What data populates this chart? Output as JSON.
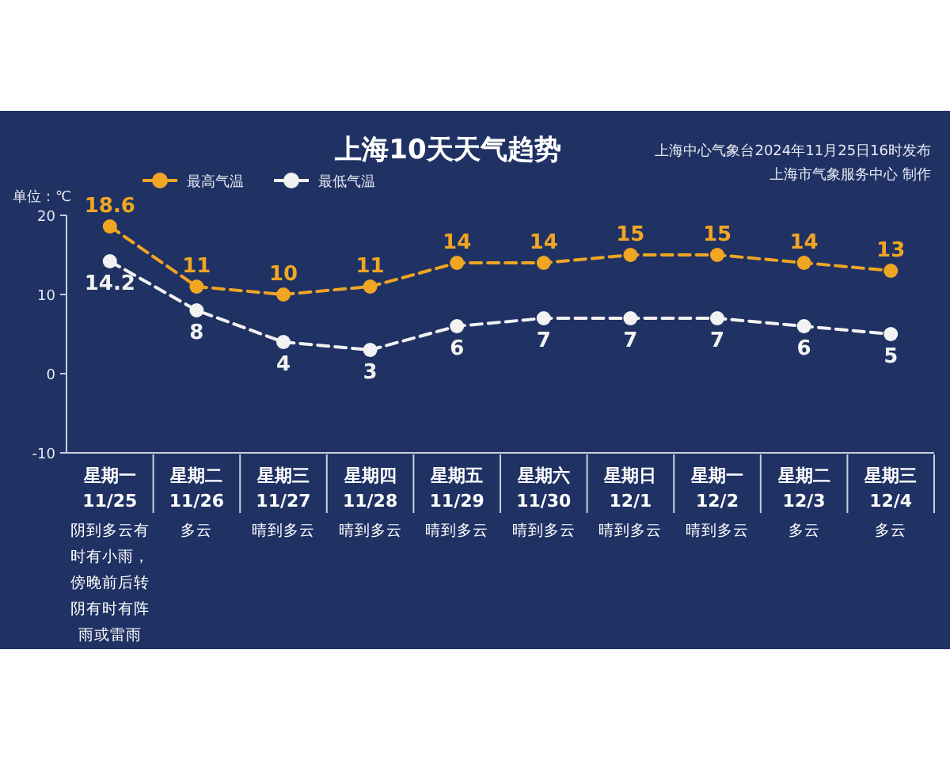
{
  "chart_data": {
    "type": "line",
    "title": "上海10天天气趋势",
    "ylabel": "单位：℃",
    "annotations": [
      "上海中心气象台2024年11月25日16时发布",
      "上海市气象服务中心 制作"
    ],
    "categories": [
      "星期一\n11/25\n阴到多云有时有小雨，傍晚前后转阴有时有阵雨或雷雨",
      "星期二\n11/26\n多云",
      "星期三\n11/27\n晴到多云",
      "星期四\n11/28\n晴到多云",
      "星期五\n11/29\n晴到多云",
      "星期六\n11/30\n晴到多云",
      "星期日\n12/1\n晴到多云",
      "星期一\n12/2\n晴到多云",
      "星期二\n12/3\n多云",
      "星期三\n12/4\n多云"
    ],
    "series": [
      {
        "name": "最高气温",
        "color": "#f0a623",
        "values": [
          18.6,
          11,
          10,
          11,
          14,
          14,
          15,
          15,
          14,
          13
        ]
      },
      {
        "name": "最低气温",
        "color": "#f2f2f2",
        "values": [
          14.2,
          8,
          4,
          3,
          6,
          7,
          7,
          7,
          6,
          5
        ]
      }
    ],
    "ylim": [
      -10,
      20
    ],
    "yticks": [
      -10,
      0,
      10,
      20
    ],
    "grid": false,
    "legend": "top left",
    "marker": "circle",
    "line_style": "dashed",
    "data_labels": true
  }
}
